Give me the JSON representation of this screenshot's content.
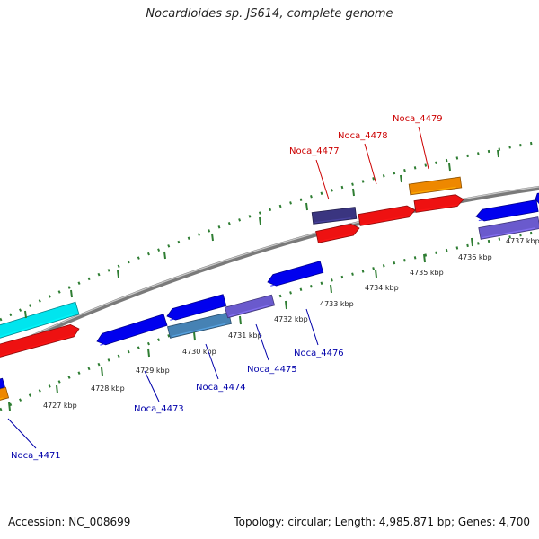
{
  "title": "Nocardioides sp. JS614, complete genome",
  "footer": {
    "accession": "Accession: NC_008699",
    "summary": "Topology: circular; Length: 4,985,871 bp; Genes: 4,700"
  },
  "colors": {
    "backbone": "#7a7a7a",
    "tick": "#2e7d32",
    "forward_label": "#cc0000",
    "reverse_label": "#0000aa"
  },
  "ticks": [
    {
      "label": "4727 kbp"
    },
    {
      "label": "4728 kbp"
    },
    {
      "label": "4729 kbp"
    },
    {
      "label": "4730 kbp"
    },
    {
      "label": "4731 kbp"
    },
    {
      "label": "4732 kbp"
    },
    {
      "label": "4733 kbp"
    },
    {
      "label": "4734 kbp"
    },
    {
      "label": "4735 kbp"
    },
    {
      "label": "4736 kbp"
    },
    {
      "label": "4737 kbp"
    }
  ],
  "genes": [
    {
      "label": "",
      "color": "#00e5ee"
    },
    {
      "label": "",
      "color": "#ee1111"
    },
    {
      "label": "",
      "color": "#ee8800"
    },
    {
      "label": "Noca_4471",
      "color": "#0000ee"
    },
    {
      "label": "",
      "color": "#0000ee"
    },
    {
      "label": "Noca_4473",
      "color": "#0000ee"
    },
    {
      "label": "Noca_4474",
      "color": "#4682b4"
    },
    {
      "label": "Noca_4475",
      "color": "#6a5acd"
    },
    {
      "label": "Noca_4476",
      "color": "#0000ee"
    },
    {
      "label": "Noca_4477",
      "color": "#3a3580"
    },
    {
      "label": "",
      "color": "#ee1111"
    },
    {
      "label": "Noca_4478",
      "color": "#ee1111"
    },
    {
      "label": "Noca_4479",
      "color": "#ee8800"
    },
    {
      "label": "",
      "color": "#ee1111"
    },
    {
      "label": "",
      "color": "#0000ee"
    },
    {
      "label": "",
      "color": "#6a5acd"
    },
    {
      "label": "",
      "color": "#0000ee"
    }
  ]
}
